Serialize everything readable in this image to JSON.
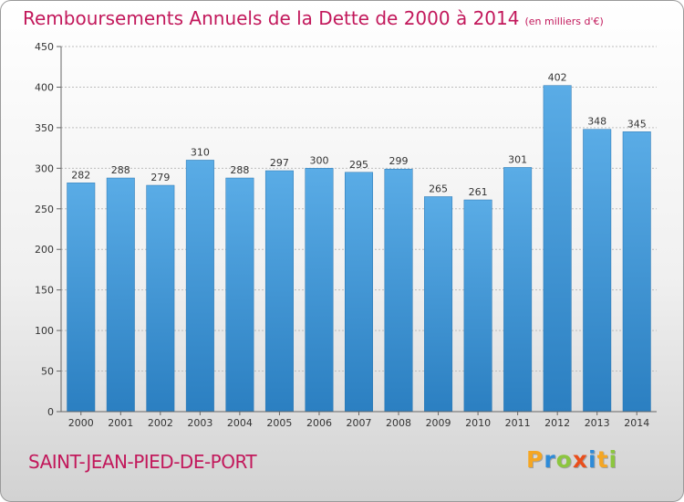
{
  "title": "Remboursements Annuels de la Dette de 2000 à 2014",
  "unit_note": "(en milliers d'€)",
  "commune": "SAINT-JEAN-PIED-DE-PORT",
  "logo": {
    "letters": [
      "P",
      "r",
      "o",
      "x",
      "i",
      "t",
      "i"
    ],
    "colors": [
      "#f5a623",
      "#2e8bd8",
      "#8cc63f",
      "#e94e1b",
      "#2e8bd8",
      "#f5a623",
      "#8cc63f"
    ]
  },
  "colors": {
    "title": "#c2185b",
    "bar_light": "#5aace6",
    "bar_dark": "#2b7fc1",
    "grid": "#bdbdbd",
    "axis": "#666666"
  },
  "chart_data": {
    "type": "bar",
    "title": "Remboursements Annuels de la Dette de 2000 à 2014",
    "xlabel": "",
    "ylabel": "",
    "ylim": [
      0,
      450
    ],
    "yticks": [
      0,
      50,
      100,
      150,
      200,
      250,
      300,
      350,
      400,
      450
    ],
    "grid": true,
    "categories": [
      "2000",
      "2001",
      "2002",
      "2003",
      "2004",
      "2005",
      "2006",
      "2007",
      "2008",
      "2009",
      "2010",
      "2011",
      "2012",
      "2013",
      "2014"
    ],
    "values": [
      282,
      288,
      279,
      310,
      288,
      297,
      300,
      295,
      299,
      265,
      261,
      301,
      402,
      348,
      345
    ]
  }
}
